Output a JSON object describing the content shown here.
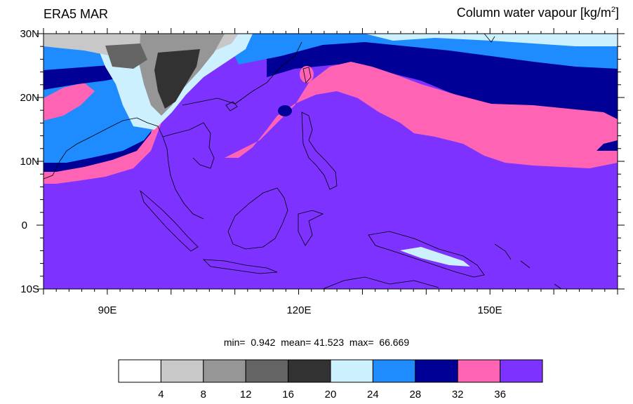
{
  "title_left": "ERA5 MAR",
  "title_right": {
    "text": "Column water vapour [kg/m",
    "sup": "2",
    "close": "]"
  },
  "lat_labels": [
    "30N",
    "20N",
    "10N",
    "0",
    "10S"
  ],
  "lon_labels": [
    "90E",
    "120E",
    "150E"
  ],
  "stats": {
    "min_label": "min=",
    "min": "0.942",
    "mean_label": "mean=",
    "mean": "41.523",
    "max_label": "max=",
    "max": "66.669"
  },
  "colorbar": {
    "colors": [
      "#ffffff",
      "#c8c8c8",
      "#969696",
      "#646464",
      "#323232",
      "#cdf0ff",
      "#1e8cff",
      "#000096",
      "#ff64b4",
      "#7d32ff"
    ],
    "labels": [
      "4",
      "8",
      "12",
      "16",
      "20",
      "24",
      "28",
      "32",
      "36"
    ]
  },
  "map": {
    "lon_range": [
      80,
      170
    ],
    "lat_range": [
      -10,
      30
    ],
    "colors": {
      "background": "#7d32ff",
      "pink": "#ff64b4",
      "navy": "#000096",
      "blue": "#1e8cff",
      "light": "#cdf0ff",
      "dark": "#323232",
      "gray": "#646464",
      "lightgray": "#969696",
      "verylight": "#c8c8c8"
    }
  }
}
